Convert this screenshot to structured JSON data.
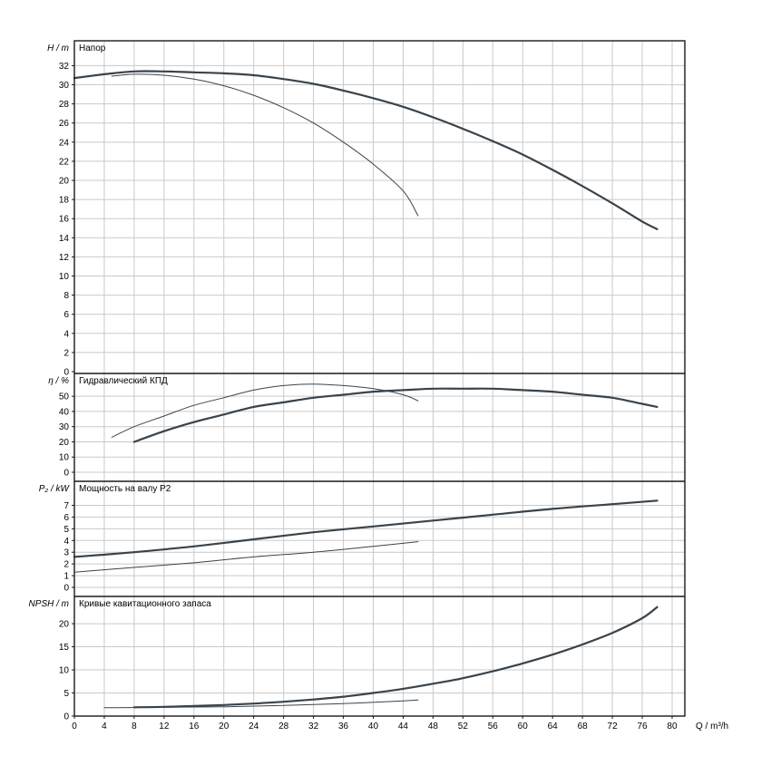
{
  "colors": {
    "background": "#ffffff",
    "grid": "#c9c9c9",
    "frame": "#1a1a1a",
    "curve": "#39434b",
    "text": "#000000"
  },
  "axes": {
    "x_label": "Q / m³/h",
    "xlim": [
      0,
      81.7
    ],
    "x_ticks": [
      0,
      4,
      8,
      12,
      16,
      20,
      24,
      28,
      32,
      36,
      40,
      44,
      48,
      52,
      56,
      60,
      64,
      68,
      72,
      76,
      80
    ]
  },
  "chart_data": [
    {
      "type": "line",
      "title": "Напор",
      "ylabel": "H / m",
      "ylim": [
        0,
        34.6
      ],
      "yticks": [
        0,
        2,
        4,
        6,
        8,
        10,
        12,
        14,
        16,
        18,
        20,
        22,
        24,
        26,
        28,
        30,
        32
      ],
      "grid": true,
      "series": [
        {
          "name": "head-full-impeller",
          "stroke_width": 2.2,
          "points": [
            [
              0,
              30.7
            ],
            [
              4,
              31.1
            ],
            [
              8,
              31.4
            ],
            [
              12,
              31.4
            ],
            [
              16,
              31.3
            ],
            [
              20,
              31.2
            ],
            [
              24,
              31.0
            ],
            [
              28,
              30.6
            ],
            [
              32,
              30.1
            ],
            [
              36,
              29.4
            ],
            [
              40,
              28.6
            ],
            [
              44,
              27.7
            ],
            [
              48,
              26.6
            ],
            [
              52,
              25.4
            ],
            [
              56,
              24.1
            ],
            [
              60,
              22.7
            ],
            [
              64,
              21.1
            ],
            [
              68,
              19.4
            ],
            [
              72,
              17.6
            ],
            [
              76,
              15.7
            ],
            [
              78,
              14.9
            ]
          ]
        },
        {
          "name": "head-trimmed-impeller",
          "stroke_width": 1,
          "points": [
            [
              5,
              30.9
            ],
            [
              8,
              31.1
            ],
            [
              12,
              31.0
            ],
            [
              16,
              30.6
            ],
            [
              20,
              29.9
            ],
            [
              24,
              28.9
            ],
            [
              28,
              27.6
            ],
            [
              32,
              26.0
            ],
            [
              36,
              24.0
            ],
            [
              40,
              21.7
            ],
            [
              44,
              18.9
            ],
            [
              46,
              16.3
            ]
          ]
        }
      ]
    },
    {
      "type": "line",
      "title": "Гидравлический КПД",
      "ylabel": "η / %",
      "ylim": [
        0,
        65
      ],
      "yticks": [
        0,
        10,
        20,
        30,
        40,
        50
      ],
      "grid": true,
      "series": [
        {
          "name": "efficiency-full-impeller",
          "stroke_width": 2.2,
          "points": [
            [
              8,
              20
            ],
            [
              12,
              27
            ],
            [
              16,
              33
            ],
            [
              20,
              38
            ],
            [
              24,
              43
            ],
            [
              28,
              46
            ],
            [
              32,
              49
            ],
            [
              36,
              51
            ],
            [
              40,
              53
            ],
            [
              44,
              54
            ],
            [
              48,
              55
            ],
            [
              52,
              55
            ],
            [
              56,
              55
            ],
            [
              60,
              54
            ],
            [
              64,
              53
            ],
            [
              68,
              51
            ],
            [
              72,
              49
            ],
            [
              76,
              45
            ],
            [
              78,
              43
            ]
          ]
        },
        {
          "name": "efficiency-trimmed-impeller",
          "stroke_width": 1,
          "points": [
            [
              5,
              23
            ],
            [
              8,
              30
            ],
            [
              12,
              37
            ],
            [
              16,
              44
            ],
            [
              20,
              49
            ],
            [
              24,
              54
            ],
            [
              28,
              57
            ],
            [
              32,
              58
            ],
            [
              36,
              57
            ],
            [
              40,
              55
            ],
            [
              44,
              51
            ],
            [
              46,
              47
            ]
          ]
        }
      ]
    },
    {
      "type": "line",
      "title": "Мощность на валу P2",
      "ylabel": "P₂ / kW",
      "ylim": [
        0,
        9.05
      ],
      "yticks": [
        0,
        1,
        2,
        3,
        4,
        5,
        6,
        7
      ],
      "grid": true,
      "series": [
        {
          "name": "power-full-impeller",
          "stroke_width": 2.2,
          "points": [
            [
              0,
              2.6
            ],
            [
              8,
              3.0
            ],
            [
              16,
              3.5
            ],
            [
              24,
              4.1
            ],
            [
              32,
              4.7
            ],
            [
              40,
              5.2
            ],
            [
              48,
              5.7
            ],
            [
              56,
              6.2
            ],
            [
              64,
              6.7
            ],
            [
              72,
              7.1
            ],
            [
              78,
              7.4
            ]
          ]
        },
        {
          "name": "power-trimmed-impeller",
          "stroke_width": 1,
          "points": [
            [
              0,
              1.3
            ],
            [
              8,
              1.7
            ],
            [
              16,
              2.1
            ],
            [
              24,
              2.6
            ],
            [
              32,
              3.0
            ],
            [
              40,
              3.5
            ],
            [
              46,
              3.9
            ]
          ]
        }
      ]
    },
    {
      "type": "line",
      "title": "Кривые кавитационного запаса",
      "ylabel": "NPSH / m",
      "ylim": [
        0,
        25.9
      ],
      "yticks": [
        0,
        5,
        10,
        15,
        20
      ],
      "grid": true,
      "series": [
        {
          "name": "npsh-full-impeller",
          "stroke_width": 2.2,
          "points": [
            [
              8,
              1.9
            ],
            [
              12,
              2.0
            ],
            [
              16,
              2.2
            ],
            [
              20,
              2.4
            ],
            [
              24,
              2.7
            ],
            [
              28,
              3.1
            ],
            [
              32,
              3.6
            ],
            [
              36,
              4.2
            ],
            [
              40,
              5.0
            ],
            [
              44,
              5.9
            ],
            [
              48,
              7.0
            ],
            [
              52,
              8.2
            ],
            [
              56,
              9.7
            ],
            [
              60,
              11.4
            ],
            [
              64,
              13.3
            ],
            [
              68,
              15.5
            ],
            [
              72,
              18.0
            ],
            [
              76,
              21.2
            ],
            [
              78,
              23.6
            ]
          ]
        },
        {
          "name": "npsh-trimmed-impeller",
          "stroke_width": 1,
          "points": [
            [
              4,
              1.8
            ],
            [
              12,
              1.9
            ],
            [
              20,
              2.0
            ],
            [
              28,
              2.3
            ],
            [
              36,
              2.7
            ],
            [
              44,
              3.3
            ],
            [
              46,
              3.5
            ]
          ]
        }
      ]
    }
  ]
}
